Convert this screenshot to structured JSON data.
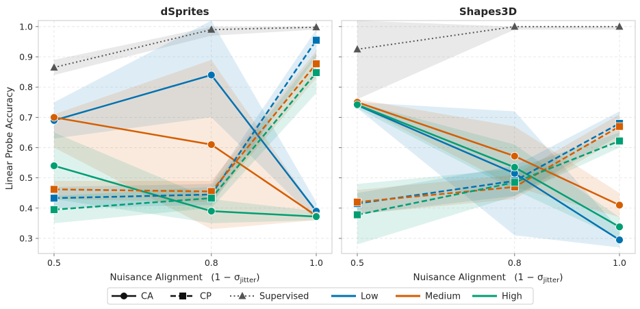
{
  "figure": {
    "ylabel": "Linear Probe Accuracy",
    "xlabel_text": "Nuisance Alignment",
    "xlabel_math": "(1 − σ",
    "xlabel_sub": "jitter",
    "xlabel_close": ")"
  },
  "legend": {
    "placement": "bottom-center",
    "items": [
      {
        "label": "CA",
        "kind": "method",
        "line": "solid",
        "marker": "circle"
      },
      {
        "label": "CP",
        "kind": "method",
        "line": "dashed",
        "marker": "square"
      },
      {
        "label": "Supervised",
        "kind": "method",
        "line": "dotted",
        "marker": "triangle"
      },
      {
        "label": "Low",
        "kind": "level",
        "color": "#0072b2"
      },
      {
        "label": "Medium",
        "kind": "level",
        "color": "#d55e00"
      },
      {
        "label": "High",
        "kind": "level",
        "color": "#009e73"
      }
    ]
  },
  "chart_data": [
    {
      "type": "line",
      "title": "dSprites",
      "xlabel": "Nuisance Alignment (1 − σjitter)",
      "ylabel": "Linear Probe Accuracy",
      "x": [
        0.5,
        0.8,
        1.0
      ],
      "xticks": [
        "0.5",
        "0.8",
        "1.0"
      ],
      "yticks": [
        "0.3",
        "0.4",
        "0.5",
        "0.6",
        "0.7",
        "0.8",
        "0.9",
        "1.0"
      ],
      "xlim": [
        0.47,
        1.03
      ],
      "ylim": [
        0.25,
        1.02
      ],
      "grid": true,
      "series": [
        {
          "name": "CA Low",
          "method": "CA",
          "level": "Low",
          "color": "#0072b2",
          "values": [
            0.69,
            0.84,
            0.39
          ],
          "lower": [
            0.63,
            0.7,
            0.36
          ],
          "upper": [
            0.75,
            1.02,
            0.42
          ]
        },
        {
          "name": "CA Medium",
          "method": "CA",
          "level": "Medium",
          "color": "#d55e00",
          "values": [
            0.7,
            0.61,
            0.375
          ],
          "lower": [
            0.6,
            0.33,
            0.36
          ],
          "upper": [
            0.71,
            0.89,
            0.39
          ]
        },
        {
          "name": "CA High",
          "method": "CA",
          "level": "High",
          "color": "#009e73",
          "values": [
            0.54,
            0.39,
            0.372
          ],
          "lower": [
            0.43,
            0.35,
            0.36
          ],
          "upper": [
            0.65,
            0.43,
            0.39
          ]
        },
        {
          "name": "CP Low",
          "method": "CP",
          "level": "Low",
          "color": "#0072b2",
          "values": [
            0.433,
            0.445,
            0.955
          ],
          "lower": [
            0.4,
            0.41,
            0.9
          ],
          "upper": [
            0.47,
            0.48,
            0.99
          ]
        },
        {
          "name": "CP Medium",
          "method": "CP",
          "level": "Medium",
          "color": "#d55e00",
          "values": [
            0.462,
            0.455,
            0.877
          ],
          "lower": [
            0.43,
            0.42,
            0.83
          ],
          "upper": [
            0.49,
            0.49,
            0.92
          ]
        },
        {
          "name": "CP High",
          "method": "CP",
          "level": "High",
          "color": "#009e73",
          "values": [
            0.395,
            0.433,
            0.848
          ],
          "lower": [
            0.35,
            0.4,
            0.78
          ],
          "upper": [
            0.44,
            0.47,
            0.91
          ]
        },
        {
          "name": "Supervised",
          "method": "Supervised",
          "color": "#555555",
          "values": [
            0.865,
            0.99,
            0.998
          ],
          "lower": [
            0.84,
            0.97,
            0.99
          ],
          "upper": [
            0.89,
            1.0,
            1.0
          ]
        }
      ]
    },
    {
      "type": "line",
      "title": "Shapes3D",
      "xlabel": "Nuisance Alignment (1 − σjitter)",
      "x": [
        0.5,
        0.8,
        1.0
      ],
      "xticks": [
        "0.5",
        "0.8",
        "1.0"
      ],
      "yticks": [
        "0.3",
        "0.4",
        "0.5",
        "0.6",
        "0.7",
        "0.8",
        "0.9",
        "1.0"
      ],
      "xlim": [
        0.47,
        1.03
      ],
      "ylim": [
        0.25,
        1.02
      ],
      "grid": true,
      "series": [
        {
          "name": "CA Low",
          "method": "CA",
          "level": "Low",
          "color": "#0072b2",
          "values": [
            0.74,
            0.515,
            0.295
          ],
          "lower": [
            0.73,
            0.31,
            0.27
          ],
          "upper": [
            0.75,
            0.72,
            0.33
          ]
        },
        {
          "name": "CA Medium",
          "method": "CA",
          "level": "Medium",
          "color": "#d55e00",
          "values": [
            0.75,
            0.572,
            0.41
          ],
          "lower": [
            0.74,
            0.47,
            0.37
          ],
          "upper": [
            0.76,
            0.67,
            0.45
          ]
        },
        {
          "name": "CA High",
          "method": "CA",
          "level": "High",
          "color": "#009e73",
          "values": [
            0.742,
            0.535,
            0.338
          ],
          "lower": [
            0.73,
            0.46,
            0.3
          ],
          "upper": [
            0.75,
            0.61,
            0.37
          ]
        },
        {
          "name": "CP Low",
          "method": "CP",
          "level": "Low",
          "color": "#0072b2",
          "values": [
            0.415,
            0.49,
            0.68
          ],
          "lower": [
            0.38,
            0.44,
            0.64
          ],
          "upper": [
            0.45,
            0.54,
            0.72
          ]
        },
        {
          "name": "CP Medium",
          "method": "CP",
          "level": "Medium",
          "color": "#d55e00",
          "values": [
            0.42,
            0.47,
            0.67
          ],
          "lower": [
            0.38,
            0.43,
            0.63
          ],
          "upper": [
            0.46,
            0.51,
            0.71
          ]
        },
        {
          "name": "CP High",
          "method": "CP",
          "level": "High",
          "color": "#009e73",
          "values": [
            0.378,
            0.485,
            0.622
          ],
          "lower": [
            0.28,
            0.44,
            0.6
          ],
          "upper": [
            0.48,
            0.53,
            0.65
          ]
        },
        {
          "name": "Supervised",
          "method": "Supervised",
          "color": "#555555",
          "values": [
            0.925,
            1.0,
            1.0
          ],
          "lower": [
            0.76,
            0.99,
            0.99
          ],
          "upper": [
            1.02,
            1.0,
            1.0
          ]
        }
      ]
    }
  ]
}
